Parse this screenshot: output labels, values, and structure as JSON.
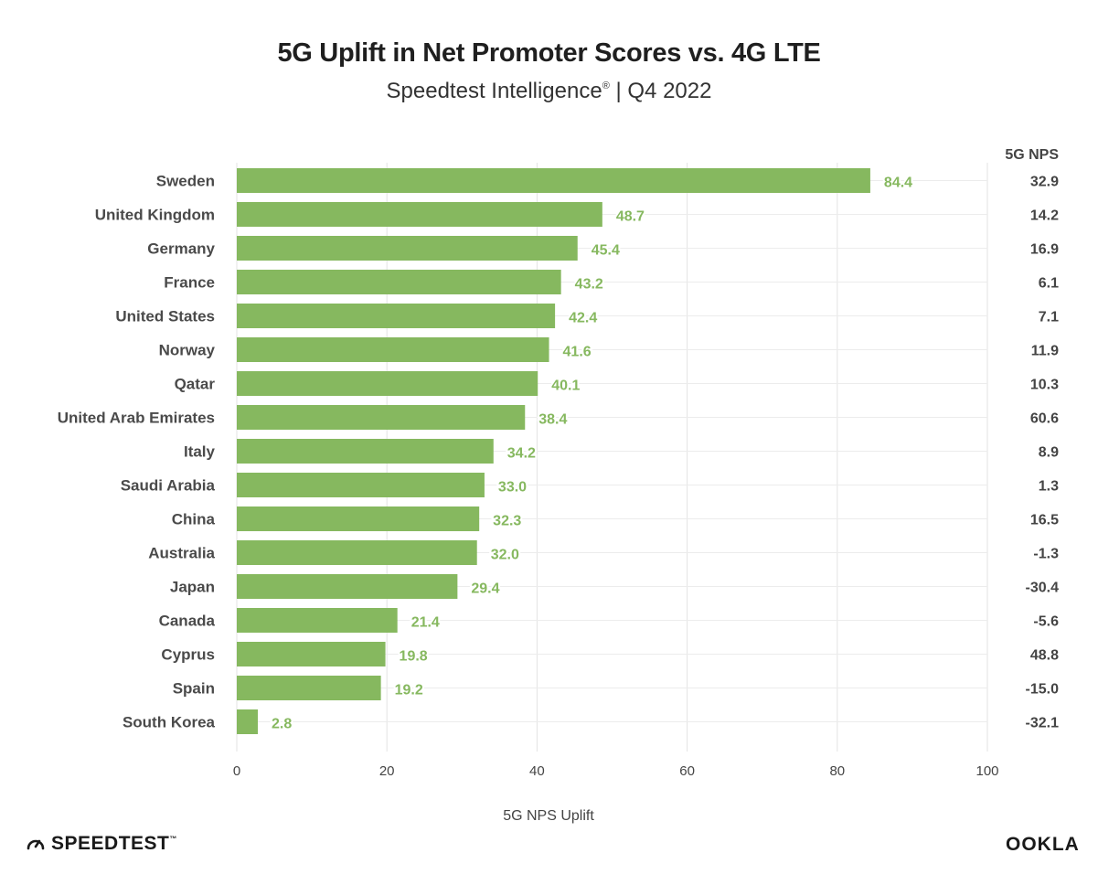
{
  "header": {
    "title": "5G Uplift in Net Promoter Scores vs. 4G LTE",
    "subtitle_main": "Speedtest Intelligence",
    "subtitle_reg": "®",
    "subtitle_tail": " | Q4 2022"
  },
  "chart_data": {
    "type": "bar",
    "orientation": "horizontal",
    "categories": [
      "Sweden",
      "United Kingdom",
      "Germany",
      "France",
      "United States",
      "Norway",
      "Qatar",
      "United Arab Emirates",
      "Italy",
      "Saudi Arabia",
      "China",
      "Australia",
      "Japan",
      "Canada",
      "Cyprus",
      "Spain",
      "South Korea"
    ],
    "series": [
      {
        "name": "5G NPS Uplift",
        "values": [
          84.4,
          48.7,
          45.4,
          43.2,
          42.4,
          41.6,
          40.1,
          38.4,
          34.2,
          33.0,
          32.3,
          32.0,
          29.4,
          21.4,
          19.8,
          19.2,
          2.8
        ]
      }
    ],
    "value_labels": [
      "84.4",
      "48.7",
      "45.4",
      "43.2",
      "42.4",
      "41.6",
      "40.1",
      "38.4",
      "34.2",
      "33.0",
      "32.3",
      "32.0",
      "29.4",
      "21.4",
      "19.8",
      "19.2",
      "2.8"
    ],
    "side_column": {
      "header": "5G NPS",
      "values": [
        "32.9",
        "14.2",
        "16.9",
        "6.1",
        "7.1",
        "11.9",
        "10.3",
        "60.6",
        "8.9",
        "1.3",
        "16.5",
        "-1.3",
        "-30.4",
        "-5.6",
        "48.8",
        "-15.0",
        "-32.1"
      ]
    },
    "xlabel": "5G NPS Uplift",
    "xlim": [
      0,
      100
    ],
    "xticks": [
      "0",
      "20",
      "40",
      "60",
      "80",
      "100"
    ],
    "grid": "vertical",
    "bar_color": "#86b85f",
    "label_color": "#86b85f"
  },
  "branding": {
    "left": "SPEEDTEST",
    "left_tm": "™",
    "right": "OOKLA"
  }
}
